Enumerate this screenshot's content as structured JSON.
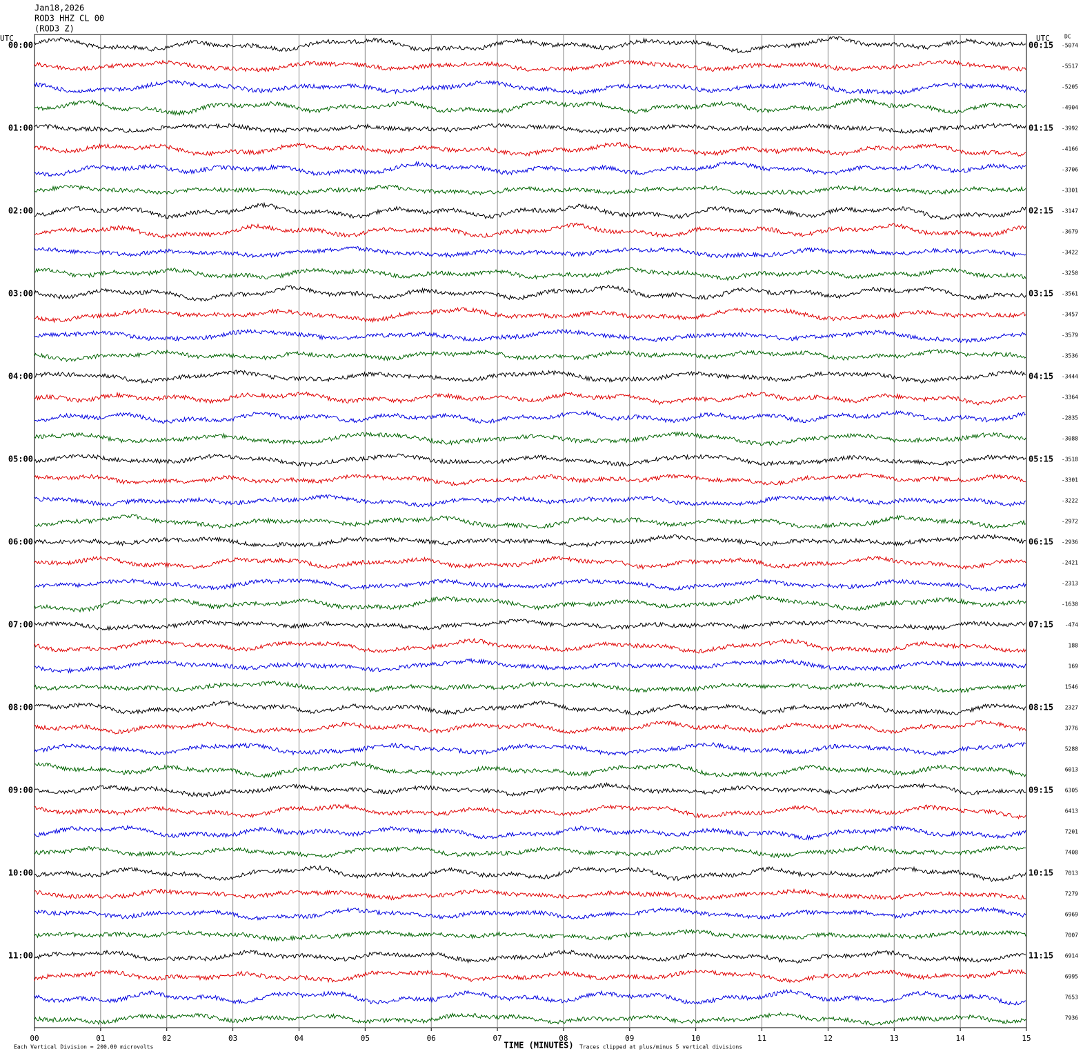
{
  "header": {
    "date": "Jan18,2026",
    "station": "ROD3 HHZ CL 00",
    "channel": "(ROD3 Z)",
    "left_utc": "UTC",
    "right_utc": "UTC",
    "dc": "DC"
  },
  "left_labels": [
    "00:00",
    "01:00",
    "02:00",
    "03:00",
    "04:00",
    "05:00",
    "06:00",
    "07:00",
    "08:00",
    "09:00",
    "10:00",
    "11:00"
  ],
  "right_labels": [
    "00:15",
    "01:15",
    "02:15",
    "03:15",
    "04:15",
    "05:15",
    "06:15",
    "07:15",
    "08:15",
    "09:15",
    "10:15",
    "11:15"
  ],
  "dc_values": [
    -5074,
    -5517,
    -5205,
    -4904,
    -3992,
    -4166,
    -3706,
    -3301,
    -3147,
    -3679,
    -3422,
    -3250,
    -3561,
    -3457,
    -3579,
    -3536,
    -3444,
    -3364,
    -2835,
    -3088,
    -3518,
    -3301,
    -3222,
    -2972,
    -2936,
    -2421,
    -2313,
    -1630,
    -474,
    188,
    169,
    1546,
    2327,
    3776,
    5288,
    6013,
    6305,
    6413,
    7201,
    7408,
    7013,
    7279,
    6969,
    7007,
    6914,
    6995,
    7653,
    7936
  ],
  "x_axis": {
    "labels": [
      "00",
      "01",
      "02",
      "03",
      "04",
      "05",
      "06",
      "07",
      "08",
      "09",
      "10",
      "11",
      "12",
      "13",
      "14",
      "15"
    ],
    "title": "TIME (MINUTES)"
  },
  "footer": {
    "scale": "Each Vertical Division =  200.00 microvolts",
    "clip": "Traces clipped at plus/minus 5 vertical divisions"
  }
}
